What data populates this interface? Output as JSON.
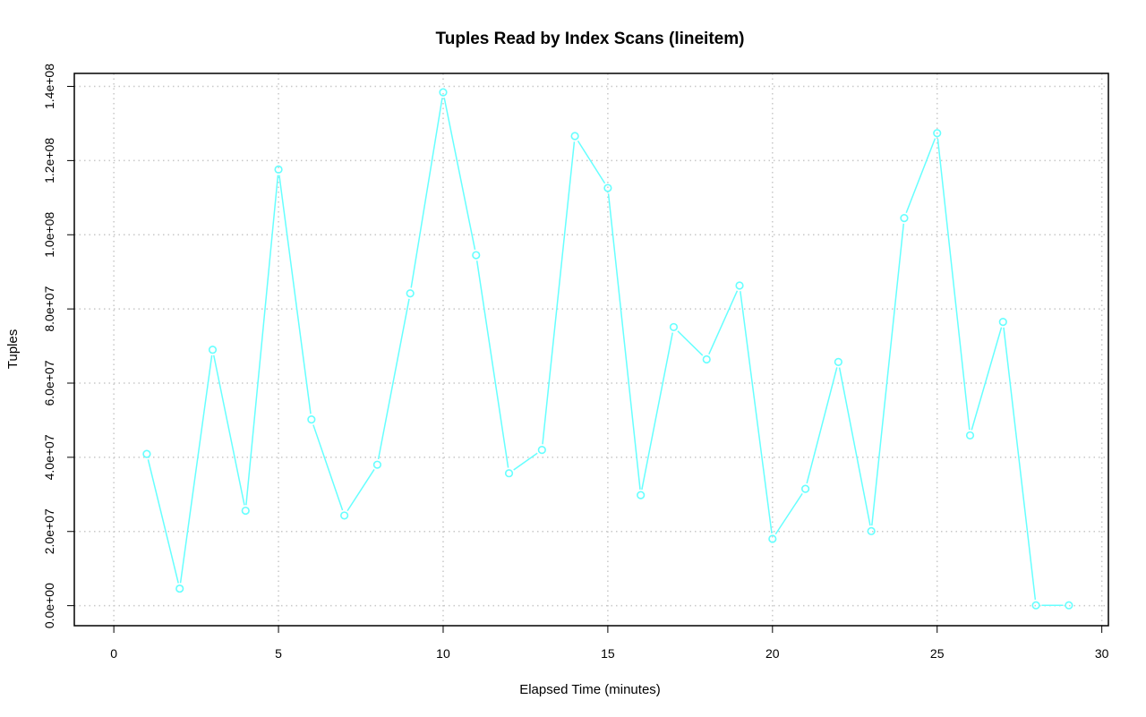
{
  "chart_data": {
    "type": "line",
    "title": "Tuples Read by Index Scans (lineitem)",
    "xlabel": "Elapsed Time (minutes)",
    "ylabel": "Tuples",
    "xlim": [
      -1.2,
      30.2
    ],
    "ylim": [
      -5400000,
      143500000
    ],
    "x_ticks": [
      0,
      5,
      10,
      15,
      20,
      25,
      30
    ],
    "x_tick_labels": [
      "0",
      "5",
      "10",
      "15",
      "20",
      "25",
      "30"
    ],
    "y_ticks": [
      0,
      20000000,
      40000000,
      60000000,
      80000000,
      100000000,
      120000000,
      140000000
    ],
    "y_tick_labels": [
      "0.0e+00",
      "2.0e+07",
      "4.0e+07",
      "6.0e+07",
      "8.0e+07",
      "1.0e+08",
      "1.2e+08",
      "1.4e+08"
    ],
    "grid": true,
    "legend": "none",
    "series": [
      {
        "color": "#66ffff",
        "marker": "open-circle",
        "x": [
          1,
          2,
          3,
          4,
          5,
          6,
          7,
          8,
          9,
          10,
          11,
          12,
          13,
          14,
          15,
          16,
          17,
          18,
          19,
          20,
          21,
          22,
          23,
          24,
          25,
          26,
          27,
          28,
          29
        ],
        "values": [
          40900000,
          4600000,
          69000000,
          25600000,
          117600000,
          50200000,
          24300000,
          38000000,
          84200000,
          138400000,
          94500000,
          35700000,
          42000000,
          126600000,
          112600000,
          29800000,
          75100000,
          66400000,
          86300000,
          18000000,
          31500000,
          65700000,
          20100000,
          104500000,
          127400000,
          45900000,
          76500000,
          100000,
          100000
        ]
      }
    ]
  }
}
